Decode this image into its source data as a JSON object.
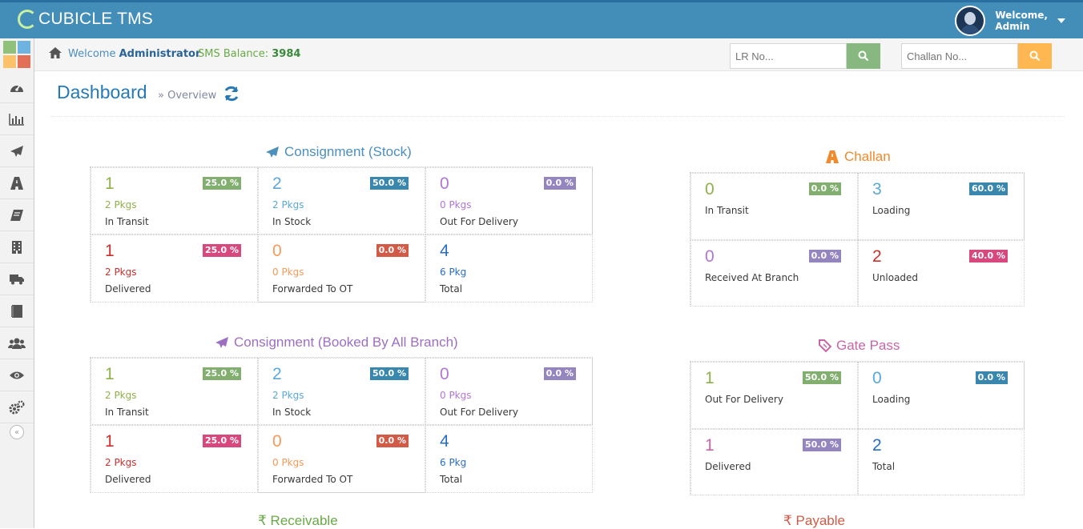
{
  "app": {
    "brand": "CUBICLE TMS",
    "user": {
      "greeting": "Welcome,",
      "name": "Admin"
    }
  },
  "sidebar": {
    "items": [
      {
        "icon": "dashboard-icon"
      },
      {
        "icon": "bar-chart-icon"
      },
      {
        "icon": "paper-plane-icon"
      },
      {
        "icon": "road-icon"
      },
      {
        "icon": "book-icon"
      },
      {
        "icon": "building-icon"
      },
      {
        "icon": "truck-icon"
      },
      {
        "icon": "notebook-icon"
      },
      {
        "icon": "users-icon"
      },
      {
        "icon": "eye-icon"
      },
      {
        "icon": "cogs-icon"
      }
    ]
  },
  "breadcrumb": {
    "welcome": "Welcome",
    "role": "Administrator",
    "sms_label": "SMS Balance:",
    "sms_value": "3984"
  },
  "search": {
    "lr_placeholder": "LR No...",
    "challan_placeholder": "Challan No..."
  },
  "page": {
    "title": "Dashboard",
    "subtitle": "» Overview"
  },
  "consignment_stock": {
    "title": "Consignment (Stock)",
    "cells": [
      {
        "num": "1",
        "pkgs": "2 Pkgs",
        "label": "In Transit",
        "badge": "25.0 %"
      },
      {
        "num": "2",
        "pkgs": "2 Pkgs",
        "label": "In Stock",
        "badge": "50.0 %"
      },
      {
        "num": "0",
        "pkgs": "0 Pkgs",
        "label": "Out For Delivery",
        "badge": "0.0 %"
      },
      {
        "num": "1",
        "pkgs": "2 Pkgs",
        "label": "Delivered",
        "badge": "25.0 %"
      },
      {
        "num": "0",
        "pkgs": "0 Pkgs",
        "label": "Forwarded To OT",
        "badge": "0.0 %"
      },
      {
        "num": "4",
        "pkgs": "6 Pkg",
        "label": "Total"
      }
    ]
  },
  "consignment_all": {
    "title": "Consignment (Booked By All Branch)",
    "cells": [
      {
        "num": "1",
        "pkgs": "2 Pkgs",
        "label": "In Transit",
        "badge": "25.0 %"
      },
      {
        "num": "2",
        "pkgs": "2 Pkgs",
        "label": "In Stock",
        "badge": "50.0 %"
      },
      {
        "num": "0",
        "pkgs": "0 Pkgs",
        "label": "Out For Delivery",
        "badge": "0.0 %"
      },
      {
        "num": "1",
        "pkgs": "2 Pkgs",
        "label": "Delivered",
        "badge": "25.0 %"
      },
      {
        "num": "0",
        "pkgs": "0 Pkgs",
        "label": "Forwarded To OT",
        "badge": "0.0 %"
      },
      {
        "num": "4",
        "pkgs": "6 Pkg",
        "label": "Total"
      }
    ]
  },
  "challan": {
    "title": "Challan",
    "cells": [
      {
        "num": "0",
        "label": "In Transit",
        "badge": "0.0 %"
      },
      {
        "num": "3",
        "label": "Loading",
        "badge": "60.0 %"
      },
      {
        "num": "0",
        "label": "Received At Branch",
        "badge": "0.0 %"
      },
      {
        "num": "2",
        "label": "Unloaded",
        "badge": "40.0 %"
      }
    ]
  },
  "gate_pass": {
    "title": "Gate Pass",
    "cells": [
      {
        "num": "1",
        "label": "Out For Delivery",
        "badge": "50.0 %"
      },
      {
        "num": "0",
        "label": "Loading",
        "badge": "0.0 %"
      },
      {
        "num": "1",
        "label": "Delivered",
        "badge": "50.0 %"
      },
      {
        "num": "2",
        "label": "Total"
      }
    ]
  },
  "receivable": {
    "title": "₹ Receivable"
  },
  "payable": {
    "title": "₹ Payable"
  }
}
